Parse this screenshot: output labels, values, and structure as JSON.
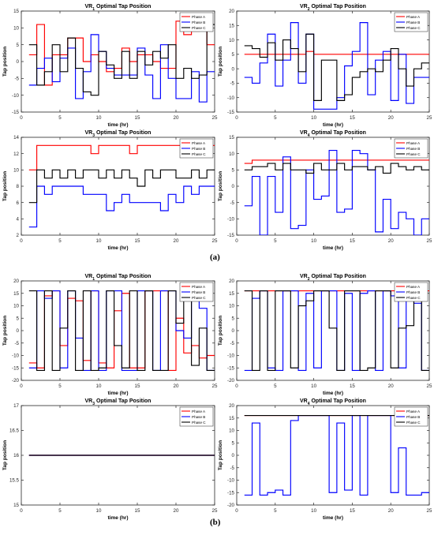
{
  "figure": {
    "label_a": "(a)",
    "label_b": "(b)"
  },
  "colors": {
    "phase_a": "#ff0000",
    "phase_b": "#0000ff",
    "phase_c": "#000000"
  },
  "chart_data": [
    {
      "type": "line",
      "step": true,
      "title_pre": "VR",
      "title_sub": "1",
      "title_post": " Optimal Tap Position",
      "xlabel": "time (hr)",
      "ylabel": "Tap position",
      "xlim": [
        0,
        25
      ],
      "ylim": [
        -15,
        15
      ],
      "xticks": [
        0,
        5,
        10,
        15,
        20,
        25
      ],
      "yticks": [
        -15,
        -10,
        -5,
        0,
        5,
        10,
        15
      ],
      "legend_pos": "top-right",
      "series": [
        {
          "name": "Phase A",
          "color": "#ff0000",
          "values": [
            2,
            11,
            -7,
            2,
            2,
            7,
            7,
            0,
            2,
            0,
            -3,
            -2,
            4,
            0,
            2,
            2,
            0,
            -2,
            -2,
            12,
            8,
            9,
            12,
            5
          ]
        },
        {
          "name": "Phase B",
          "color": "#0000ff",
          "values": [
            -7,
            -2,
            1,
            -6,
            1,
            4,
            -11,
            -3,
            8,
            3,
            -2,
            -4,
            -4,
            -4,
            4,
            -4,
            -11,
            5,
            -5,
            -11,
            -11,
            -3,
            -12,
            -3
          ]
        },
        {
          "name": "Phase C",
          "color": "#000000",
          "values": [
            5,
            -7,
            -3,
            5,
            -3,
            7,
            -2,
            -9,
            -10,
            3,
            -1,
            -5,
            3,
            -5,
            3,
            -1,
            3,
            1,
            5,
            -5,
            -2,
            -5,
            -4,
            11
          ]
        }
      ]
    },
    {
      "type": "line",
      "step": true,
      "title_pre": "VR",
      "title_sub": "2",
      "title_post": " Optimal Tap Position",
      "xlabel": "time (hr)",
      "ylabel": "Tap position",
      "xlim": [
        0,
        25
      ],
      "ylim": [
        -15,
        20
      ],
      "xticks": [
        0,
        5,
        10,
        15,
        20,
        25
      ],
      "yticks": [
        -15,
        -10,
        -5,
        0,
        5,
        10,
        15,
        20
      ],
      "legend_pos": "top-right",
      "series": [
        {
          "name": "Phase A",
          "color": "#ff0000",
          "values": [
            5,
            5,
            5,
            5,
            5,
            5,
            5,
            5,
            6,
            5,
            5,
            5,
            5,
            5,
            5,
            5,
            5,
            5,
            5,
            5,
            5,
            5,
            5,
            5
          ]
        },
        {
          "name": "Phase B",
          "color": "#0000ff",
          "values": [
            -3,
            -5,
            2,
            12,
            -6,
            3,
            16,
            -5,
            12,
            -14,
            -14,
            -14,
            -10,
            1,
            6,
            16,
            -9,
            3,
            6,
            -11,
            5,
            -12,
            -3,
            -3
          ]
        },
        {
          "name": "Phase C",
          "color": "#000000",
          "values": [
            8,
            7,
            4,
            9,
            3,
            10,
            7,
            -1,
            12,
            -11,
            3,
            3,
            -11,
            -9,
            -3,
            -1,
            0,
            -1,
            3,
            7,
            0,
            -6,
            0,
            2
          ]
        }
      ]
    },
    {
      "type": "line",
      "step": true,
      "title_pre": "VR",
      "title_sub": "3",
      "title_post": " Optimal Tap Position",
      "xlabel": "time (hr)",
      "ylabel": "Tap position",
      "xlim": [
        0,
        25
      ],
      "ylim": [
        2,
        14
      ],
      "xticks": [
        0,
        5,
        10,
        15,
        20,
        25
      ],
      "yticks": [
        2,
        4,
        6,
        8,
        10,
        12,
        14
      ],
      "legend_pos": "top-right",
      "series": [
        {
          "name": "Phase A",
          "color": "#ff0000",
          "values": [
            10,
            13,
            13,
            13,
            13,
            13,
            13,
            13,
            12,
            13,
            13,
            13,
            13,
            12,
            13,
            13,
            13,
            13,
            13,
            13,
            13,
            13,
            13,
            13
          ]
        },
        {
          "name": "Phase B",
          "color": "#0000ff",
          "values": [
            3,
            8,
            7,
            8,
            8,
            8,
            8,
            7,
            7,
            7,
            5,
            6,
            7,
            6,
            6,
            6,
            6,
            5,
            7,
            6,
            8,
            7,
            8,
            8
          ]
        },
        {
          "name": "Phase C",
          "color": "#000000",
          "values": [
            6,
            10,
            9,
            10,
            9,
            10,
            9,
            10,
            10,
            9,
            10,
            9,
            10,
            9,
            8,
            10,
            9,
            10,
            10,
            9,
            9,
            10,
            9,
            10
          ]
        }
      ]
    },
    {
      "type": "line",
      "step": true,
      "title_pre": "VR",
      "title_sub": "4",
      "title_post": " Optimal Tap Position",
      "xlabel": "time (hr)",
      "ylabel": "Tap position",
      "xlim": [
        0,
        25
      ],
      "ylim": [
        -15,
        15
      ],
      "xticks": [
        0,
        5,
        10,
        15,
        20,
        25
      ],
      "yticks": [
        -15,
        -10,
        -5,
        0,
        5,
        10,
        15
      ],
      "legend_pos": "top-right",
      "series": [
        {
          "name": "Phase A",
          "color": "#ff0000",
          "values": [
            7,
            8,
            8,
            8,
            8,
            8,
            8,
            8,
            8,
            8,
            8,
            8,
            8,
            8,
            8,
            8,
            8,
            8,
            8,
            8,
            8,
            8,
            8,
            8
          ]
        },
        {
          "name": "Phase B",
          "color": "#0000ff",
          "values": [
            -6,
            3,
            -15,
            3,
            -8,
            9,
            -13,
            -12,
            5,
            -4,
            -3,
            11,
            -8,
            -7,
            11,
            10,
            5,
            -14,
            -4,
            -13,
            -8,
            -10,
            -15,
            -10
          ]
        },
        {
          "name": "Phase C",
          "color": "#000000",
          "values": [
            5,
            6,
            6,
            7,
            5,
            7,
            5,
            5,
            4,
            7,
            5,
            5,
            7,
            5,
            6,
            6,
            5,
            6,
            4,
            7,
            6,
            5,
            6,
            5
          ]
        }
      ]
    },
    {
      "type": "line",
      "step": true,
      "title_pre": "VR",
      "title_sub": "1",
      "title_post": " Optimal Tap Position",
      "xlabel": "time (hr)",
      "ylabel": "Tap position",
      "xlim": [
        0,
        25
      ],
      "ylim": [
        -20,
        20
      ],
      "xticks": [
        0,
        5,
        10,
        15,
        20,
        25
      ],
      "yticks": [
        -20,
        -15,
        -10,
        -5,
        0,
        5,
        10,
        15,
        20
      ],
      "legend_pos": "top-right",
      "series": [
        {
          "name": "Phase A",
          "color": "#ff0000",
          "values": [
            -13,
            -15,
            14,
            16,
            -6,
            13,
            12,
            -12,
            16,
            -13,
            -15,
            8,
            15,
            -15,
            -15,
            16,
            16,
            16,
            -16,
            5,
            -9,
            -6,
            -11,
            -10
          ]
        },
        {
          "name": "Phase B",
          "color": "#0000ff",
          "values": [
            -15,
            16,
            13,
            16,
            -15,
            16,
            -3,
            -16,
            16,
            -16,
            16,
            16,
            -16,
            -16,
            16,
            16,
            -16,
            16,
            16,
            0,
            -3,
            16,
            9,
            -16
          ]
        },
        {
          "name": "Phase C",
          "color": "#000000",
          "values": [
            16,
            -16,
            16,
            -16,
            1,
            16,
            -16,
            16,
            -16,
            -15,
            16,
            -6,
            -15,
            16,
            -16,
            16,
            -16,
            -16,
            16,
            3,
            16,
            -14,
            1,
            -16
          ]
        }
      ]
    },
    {
      "type": "line",
      "step": true,
      "title_pre": "VR",
      "title_sub": "2",
      "title_post": " Optimal Tap Position",
      "xlabel": "time (hr)",
      "ylabel": "Tap position",
      "xlim": [
        0,
        25
      ],
      "ylim": [
        -20,
        20
      ],
      "xticks": [
        0,
        5,
        10,
        15,
        20,
        25
      ],
      "yticks": [
        -20,
        -15,
        -10,
        -5,
        0,
        5,
        10,
        15,
        20
      ],
      "legend_pos": "top-right",
      "series": [
        {
          "name": "Phase A",
          "color": "#ff0000",
          "values": [
            16,
            16,
            16,
            16,
            16,
            16,
            16,
            16,
            16,
            16,
            16,
            16,
            16,
            16,
            16,
            16,
            16,
            16,
            16,
            16,
            16,
            16,
            16,
            16
          ]
        },
        {
          "name": "Phase B",
          "color": "#0000ff",
          "values": [
            -16,
            13,
            16,
            -15,
            -16,
            16,
            16,
            -16,
            15,
            -15,
            16,
            16,
            -16,
            15,
            -16,
            15,
            16,
            -16,
            16,
            14,
            -15,
            16,
            11,
            -16
          ]
        },
        {
          "name": "Phase C",
          "color": "#000000",
          "values": [
            16,
            -16,
            16,
            -16,
            16,
            16,
            -15,
            10,
            12,
            16,
            16,
            1,
            -16,
            16,
            16,
            -16,
            -15,
            16,
            16,
            -15,
            1,
            2,
            16,
            -16
          ]
        }
      ]
    },
    {
      "type": "line",
      "step": true,
      "title_pre": "VR",
      "title_sub": "3",
      "title_post": " Optimal Tap Position",
      "xlabel": "time (hr)",
      "ylabel": "Tap position",
      "xlim": [
        0,
        25
      ],
      "ylim": [
        15,
        17
      ],
      "xticks": [
        0,
        5,
        10,
        15,
        20,
        25
      ],
      "yticks": [
        15,
        15.5,
        16,
        16.5,
        17
      ],
      "legend_pos": "top-right",
      "series": [
        {
          "name": "Phase A",
          "color": "#ff0000",
          "values": [
            16,
            16,
            16,
            16,
            16,
            16,
            16,
            16,
            16,
            16,
            16,
            16,
            16,
            16,
            16,
            16,
            16,
            16,
            16,
            16,
            16,
            16,
            16,
            16
          ]
        },
        {
          "name": "Phase B",
          "color": "#0000ff",
          "values": [
            16,
            16,
            16,
            16,
            16,
            16,
            16,
            16,
            16,
            16,
            16,
            16,
            16,
            16,
            16,
            16,
            16,
            16,
            16,
            16,
            16,
            16,
            16,
            16
          ]
        },
        {
          "name": "Phase C",
          "color": "#000000",
          "values": [
            16,
            16,
            16,
            16,
            16,
            16,
            16,
            16,
            16,
            16,
            16,
            16,
            16,
            16,
            16,
            16,
            16,
            16,
            16,
            16,
            16,
            16,
            16,
            16
          ]
        }
      ]
    },
    {
      "type": "line",
      "step": true,
      "title_pre": "VR",
      "title_sub": "4",
      "title_post": " Optimal Tap Position",
      "xlabel": "time (hr)",
      "ylabel": "Tap position",
      "xlim": [
        0,
        25
      ],
      "ylim": [
        -20,
        20
      ],
      "xticks": [
        0,
        5,
        10,
        15,
        20,
        25
      ],
      "yticks": [
        -20,
        -15,
        -10,
        -5,
        0,
        5,
        10,
        15,
        20
      ],
      "legend_pos": "top-right",
      "series": [
        {
          "name": "Phase A",
          "color": "#ff0000",
          "values": [
            16,
            16,
            16,
            16,
            16,
            16,
            16,
            16,
            16,
            16,
            16,
            16,
            16,
            16,
            16,
            16,
            16,
            16,
            16,
            16,
            16,
            16,
            16,
            16
          ]
        },
        {
          "name": "Phase B",
          "color": "#0000ff",
          "values": [
            -16,
            13,
            -16,
            -15,
            -14,
            -16,
            14,
            16,
            16,
            16,
            16,
            -15,
            13,
            -14,
            16,
            -16,
            16,
            16,
            16,
            -15,
            3,
            -16,
            -16,
            -15
          ]
        },
        {
          "name": "Phase C",
          "color": "#000000",
          "values": [
            16,
            16,
            16,
            16,
            16,
            16,
            16,
            16,
            16,
            16,
            16,
            16,
            16,
            16,
            16,
            16,
            16,
            16,
            16,
            16,
            16,
            16,
            16,
            16
          ]
        }
      ]
    }
  ]
}
